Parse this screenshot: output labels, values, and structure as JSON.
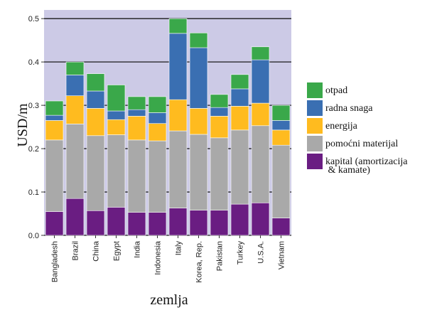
{
  "chart_data": {
    "type": "bar",
    "stacked": true,
    "xlabel": "zemlja",
    "ylabel": "USD/m",
    "ylim": [
      0,
      0.52
    ],
    "yticks": [
      "0.0",
      "0.1",
      "0.2",
      "0.3",
      "0.4",
      "0.5"
    ],
    "grid": true,
    "legend_position": "right",
    "categories": [
      "Bangladesh",
      "Brazil",
      "China",
      "Egypt",
      "India",
      "Indonesia",
      "Italy",
      "Korea, Rep.",
      "Pakistan",
      "Turkey",
      "U.S.A.",
      "Vietnam"
    ],
    "series": [
      {
        "name": "kapital (amortizacija\n & kamate)",
        "color": "#6a1d82",
        "values": [
          0.055,
          0.085,
          0.057,
          0.065,
          0.053,
          0.053,
          0.063,
          0.058,
          0.058,
          0.072,
          0.075,
          0.04
        ]
      },
      {
        "name": "pomoćni materijal",
        "color": "#a9a9a9",
        "values": [
          0.165,
          0.172,
          0.173,
          0.167,
          0.167,
          0.165,
          0.178,
          0.175,
          0.167,
          0.171,
          0.178,
          0.168
        ]
      },
      {
        "name": "energija",
        "color": "#ffbb1f",
        "values": [
          0.045,
          0.065,
          0.063,
          0.035,
          0.055,
          0.04,
          0.072,
          0.06,
          0.05,
          0.055,
          0.052,
          0.035
        ]
      },
      {
        "name": "radna snaga",
        "color": "#3a6fb2",
        "values": [
          0.012,
          0.048,
          0.04,
          0.02,
          0.015,
          0.025,
          0.153,
          0.14,
          0.02,
          0.04,
          0.1,
          0.022
        ]
      },
      {
        "name": "otpad",
        "color": "#3aa84a",
        "values": [
          0.033,
          0.03,
          0.04,
          0.06,
          0.03,
          0.037,
          0.034,
          0.034,
          0.03,
          0.033,
          0.03,
          0.035
        ]
      }
    ],
    "legend_order": [
      "otpad",
      "radna snaga",
      "energija",
      "pomoćni materijal",
      "kapital (amortizacija\n & kamate)"
    ],
    "background_color": "#cccae6"
  }
}
